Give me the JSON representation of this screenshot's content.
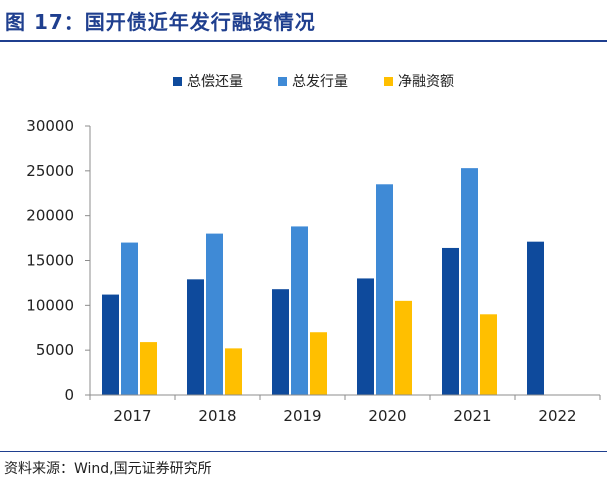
{
  "figure": {
    "title": "图 17：国开债近年发行融资情况",
    "source": "资料来源：Wind,国元证券研究所"
  },
  "chart_data": {
    "type": "bar",
    "title": "",
    "xlabel": "",
    "ylabel": "",
    "categories": [
      "2017",
      "2018",
      "2019",
      "2020",
      "2021",
      "2022"
    ],
    "series": [
      {
        "name": "总偿还量",
        "color": "#0e4a9c",
        "values": [
          11200,
          12900,
          11800,
          13000,
          16400,
          17100
        ]
      },
      {
        "name": "总发行量",
        "color": "#3f8ad6",
        "values": [
          17000,
          18000,
          18800,
          23500,
          25300,
          null
        ]
      },
      {
        "name": "净融资额",
        "color": "#ffbf00",
        "values": [
          5900,
          5200,
          7000,
          10500,
          9000,
          null
        ]
      }
    ],
    "ylim": [
      0,
      30000
    ],
    "yticks": [
      "0",
      "5000",
      "10000",
      "15000",
      "20000",
      "25000",
      "30000"
    ],
    "ytick_values": [
      0,
      5000,
      10000,
      15000,
      20000,
      25000,
      30000
    ],
    "grid": false,
    "legend_position": "top-center"
  }
}
